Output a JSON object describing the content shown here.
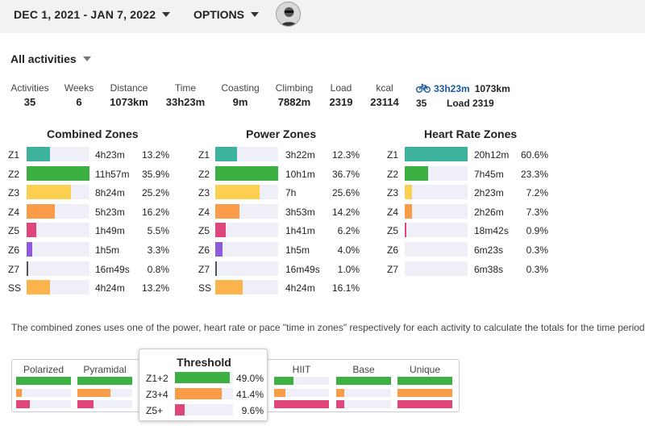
{
  "header": {
    "date_range": "DEC 1, 2021 - JAN 7, 2022",
    "options_label": "OPTIONS"
  },
  "filter": {
    "label": "All activities"
  },
  "stats": [
    {
      "label": "Activities",
      "value": "35"
    },
    {
      "label": "Weeks",
      "value": "6"
    },
    {
      "label": "Distance",
      "value": "1073km"
    },
    {
      "label": "Time",
      "value": "33h23m"
    },
    {
      "label": "Coasting",
      "value": "9m"
    },
    {
      "label": "Climbing",
      "value": "7882m"
    },
    {
      "label": "Load",
      "value": "2319"
    },
    {
      "label": "kcal",
      "value": "23114"
    }
  ],
  "bike": {
    "time": "33h23m",
    "distance": "1073km",
    "count": "35",
    "load": "Load 2319"
  },
  "zones": {
    "combined": {
      "title": "Combined Zones",
      "rows": [
        {
          "name": "Z1",
          "time": "4h23m",
          "pct": "13.2%",
          "level": 0.37,
          "color": "#3db39e"
        },
        {
          "name": "Z2",
          "time": "11h57m",
          "pct": "35.9%",
          "level": 1.0,
          "color": "#3cb043"
        },
        {
          "name": "Z3",
          "time": "8h24m",
          "pct": "25.2%",
          "level": 0.7,
          "color": "#fbd051"
        },
        {
          "name": "Z4",
          "time": "5h23m",
          "pct": "16.2%",
          "level": 0.45,
          "color": "#f89c47"
        },
        {
          "name": "Z5",
          "time": "1h49m",
          "pct": "5.5%",
          "level": 0.15,
          "color": "#e0457b"
        },
        {
          "name": "Z6",
          "time": "1h5m",
          "pct": "3.3%",
          "level": 0.09,
          "color": "#8d5bd9"
        },
        {
          "name": "Z7",
          "time": "16m49s",
          "pct": "0.8%",
          "level": 0.02,
          "color": "#555555"
        },
        {
          "name": "SS",
          "time": "4h24m",
          "pct": "13.2%",
          "level": 0.37,
          "color": "#fbb44b"
        }
      ]
    },
    "power": {
      "title": "Power Zones",
      "rows": [
        {
          "name": "Z1",
          "time": "3h22m",
          "pct": "12.3%",
          "level": 0.34,
          "color": "#3db39e"
        },
        {
          "name": "Z2",
          "time": "10h1m",
          "pct": "36.7%",
          "level": 1.0,
          "color": "#3cb043"
        },
        {
          "name": "Z3",
          "time": "7h",
          "pct": "25.6%",
          "level": 0.7,
          "color": "#fbd051"
        },
        {
          "name": "Z4",
          "time": "3h53m",
          "pct": "14.2%",
          "level": 0.39,
          "color": "#f89c47"
        },
        {
          "name": "Z5",
          "time": "1h41m",
          "pct": "6.2%",
          "level": 0.17,
          "color": "#e0457b"
        },
        {
          "name": "Z6",
          "time": "1h5m",
          "pct": "4.0%",
          "level": 0.11,
          "color": "#8d5bd9"
        },
        {
          "name": "Z7",
          "time": "16m49s",
          "pct": "1.0%",
          "level": 0.03,
          "color": "#555555"
        },
        {
          "name": "SS",
          "time": "4h24m",
          "pct": "16.1%",
          "level": 0.44,
          "color": "#fbb44b"
        }
      ]
    },
    "hr": {
      "title": "Heart Rate Zones",
      "rows": [
        {
          "name": "Z1",
          "time": "20h12m",
          "pct": "60.6%",
          "level": 1.0,
          "color": "#3db39e"
        },
        {
          "name": "Z2",
          "time": "7h45m",
          "pct": "23.3%",
          "level": 0.37,
          "color": "#3cb043"
        },
        {
          "name": "Z3",
          "time": "2h23m",
          "pct": "7.2%",
          "level": 0.12,
          "color": "#fbd051"
        },
        {
          "name": "Z4",
          "time": "2h26m",
          "pct": "7.3%",
          "level": 0.12,
          "color": "#f89c47"
        },
        {
          "name": "Z5",
          "time": "18m42s",
          "pct": "0.9%",
          "level": 0.02,
          "color": "#e0457b"
        },
        {
          "name": "Z6",
          "time": "6m23s",
          "pct": "0.3%",
          "level": 0.0,
          "color": "#8d5bd9"
        },
        {
          "name": "Z7",
          "time": "6m38s",
          "pct": "0.3%",
          "level": 0.0,
          "color": "#555555"
        }
      ]
    }
  },
  "note": "The combined zones uses one of the power, heart rate or pace \"time in zones\" respectively for each activity to calculate the totals for the time period",
  "distributions": [
    {
      "label": "Polarized",
      "levels": [
        1.0,
        0.1,
        0.25
      ]
    },
    {
      "label": "Pyramidal",
      "levels": [
        1.0,
        0.6,
        0.3
      ]
    },
    {
      "label": "HIIT",
      "levels": [
        0.35,
        0.2,
        1.0
      ]
    },
    {
      "label": "Base",
      "levels": [
        1.0,
        0.15,
        0.15
      ]
    },
    {
      "label": "Unique",
      "levels": [
        1.0,
        1.0,
        1.0
      ]
    }
  ],
  "threshold": {
    "title": "Threshold",
    "rows": [
      {
        "name": "Z1+2",
        "pct": "49.0%",
        "level": 0.94,
        "color": "#3cb043"
      },
      {
        "name": "Z3+4",
        "pct": "41.4%",
        "level": 0.8,
        "color": "#f89c47"
      },
      {
        "name": "Z5+",
        "pct": "9.6%",
        "level": 0.17,
        "color": "#e0457b"
      }
    ]
  },
  "colors": {
    "green": "#3cb043",
    "orange": "#f89c47",
    "pink": "#e0457b",
    "track": "#efeff7"
  }
}
